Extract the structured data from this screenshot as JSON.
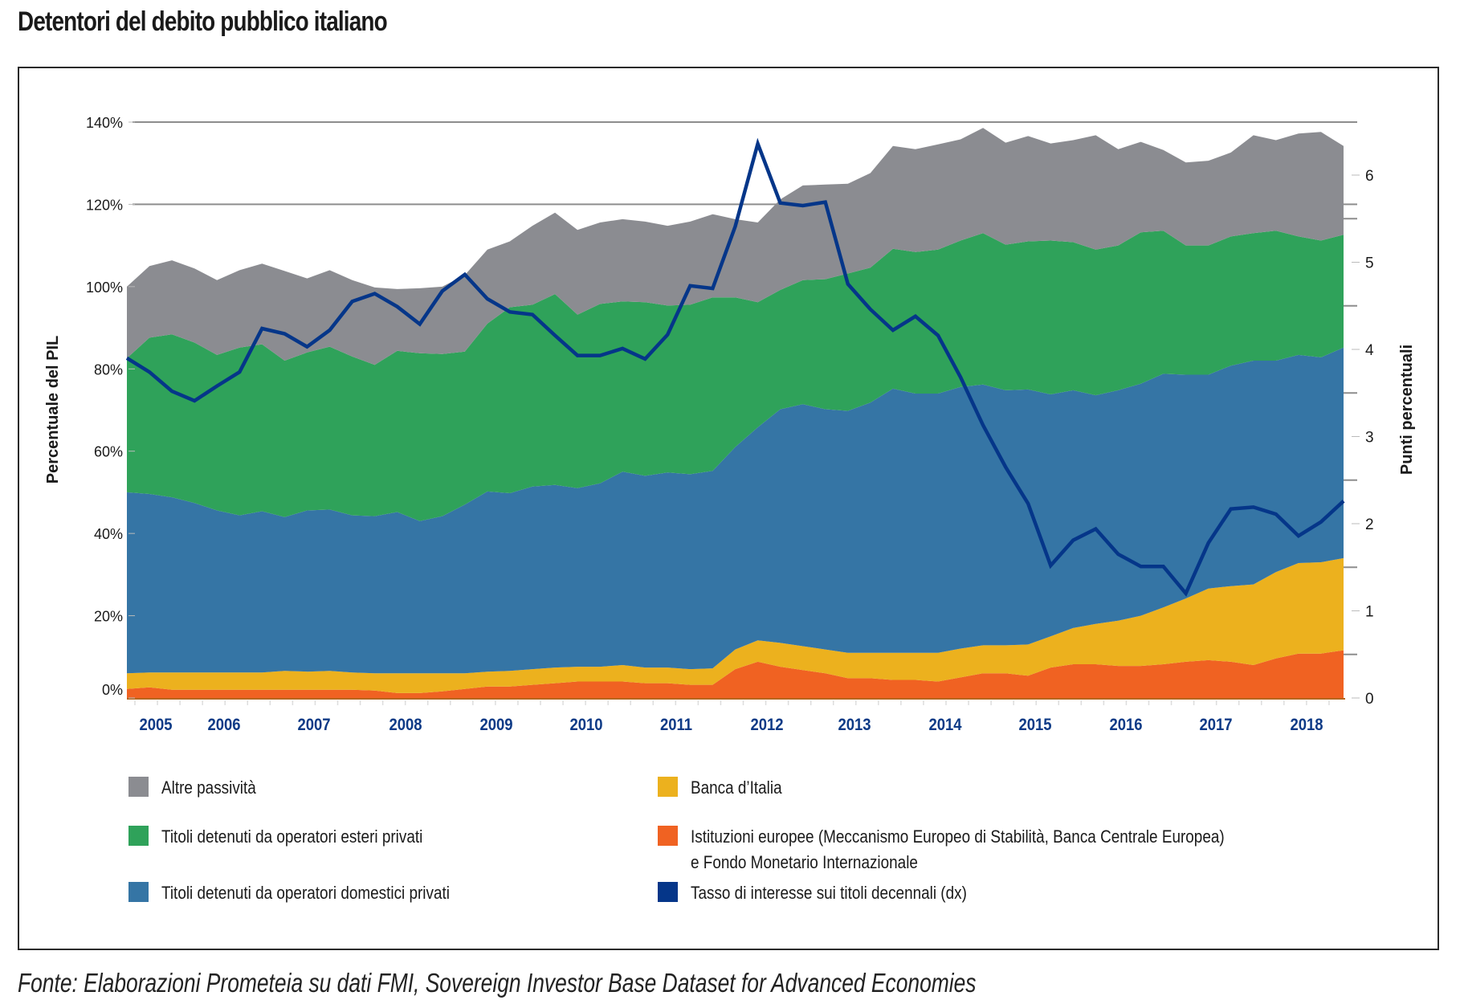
{
  "title": "Detentori del debito pubblico italiano",
  "footer": "Fonte: Elaborazioni Prometeia su dati FMI, Sovereign Investor Base Dataset for Advanced Economies",
  "chart_data": {
    "type": "area",
    "title": "Detentori del debito pubblico italiano",
    "ylabel": "Percentuale del PIL",
    "y2label": "Punti percentuali",
    "ylim": [
      0,
      140
    ],
    "y2lim": [
      0,
      6.4
    ],
    "yticks": [
      "0%",
      "20%",
      "40%",
      "60%",
      "80%",
      "100%",
      "120%",
      "140%"
    ],
    "y2ticks": [
      "0",
      "1",
      "2",
      "3",
      "4",
      "5",
      "6"
    ],
    "xtick_labels": [
      "2005",
      "2006",
      "2007",
      "2008",
      "2009",
      "2010",
      "2011",
      "2012",
      "2013",
      "2014",
      "2015",
      "2016",
      "2017",
      "2018"
    ],
    "x_start": "2005Q1",
    "frequency": "quarterly",
    "grid": "horizontal (120%, 140%)",
    "legend_position": "bottom",
    "stack_order": [
      "Istituzioni europee",
      "Banca d'Italia",
      "Domestici privati",
      "Esteri privati",
      "Altre passività"
    ],
    "series": [
      {
        "name": "Istituzioni europee (Meccanismo Europeo di Stabilità, Banca Centrale Europea)\ne Fondo Monetario Internazionale",
        "key": "eu",
        "color": "#f06222",
        "axis": "left",
        "values": [
          2.2,
          2.6,
          2.0,
          2.0,
          2.0,
          2.0,
          2.0,
          2.0,
          2.0,
          2.0,
          2.0,
          1.8,
          1.2,
          1.2,
          1.6,
          2.2,
          2.8,
          2.8,
          3.2,
          3.6,
          4.0,
          4.0,
          4.0,
          3.6,
          3.6,
          3.2,
          3.2,
          7.0,
          8.8,
          7.6,
          6.8,
          6.0,
          4.8,
          4.8,
          4.4,
          4.4,
          4.0,
          5.0,
          6.0,
          6.0,
          5.4,
          7.4,
          8.2,
          8.2,
          7.8,
          7.8,
          8.2,
          8.8,
          9.2,
          8.8,
          8.0,
          9.6,
          10.8,
          10.8,
          11.6
        ]
      },
      {
        "name": "Banca d'Italia",
        "key": "bdi",
        "color": "#ecb11e",
        "axis": "left",
        "values": [
          3.8,
          3.6,
          4.2,
          4.2,
          4.2,
          4.2,
          4.2,
          4.6,
          4.4,
          4.6,
          4.2,
          4.2,
          4.8,
          4.8,
          4.4,
          3.8,
          3.6,
          3.8,
          3.8,
          3.8,
          3.6,
          3.6,
          4.0,
          3.8,
          3.8,
          3.8,
          4.0,
          4.8,
          5.2,
          5.8,
          5.8,
          5.8,
          6.2,
          6.2,
          6.6,
          6.6,
          7.0,
          7.0,
          6.8,
          6.8,
          7.6,
          7.6,
          8.8,
          9.8,
          11.0,
          12.2,
          13.8,
          15.4,
          17.4,
          18.4,
          19.6,
          21.0,
          22.0,
          22.2,
          22.4
        ]
      },
      {
        "name": "Titoli detenuti da operatori domestici privati",
        "key": "dom",
        "color": "#3575a5",
        "axis": "left",
        "values": [
          44.0,
          43.4,
          42.6,
          41.2,
          39.4,
          38.2,
          39.2,
          37.4,
          39.2,
          39.2,
          38.2,
          38.2,
          39.2,
          37.0,
          38.2,
          41.0,
          43.8,
          43.2,
          44.4,
          44.4,
          43.4,
          44.6,
          47.0,
          46.6,
          47.4,
          47.4,
          48.0,
          49.2,
          51.8,
          56.8,
          58.8,
          58.4,
          58.8,
          60.8,
          64.2,
          63.0,
          63.0,
          63.6,
          63.4,
          62.0,
          62.0,
          58.8,
          57.8,
          55.6,
          56.0,
          56.4,
          56.8,
          54.4,
          52.0,
          53.6,
          54.4,
          51.4,
          50.6,
          49.8,
          51.2
        ]
      },
      {
        "name": "Titoli detenuti da operatori esteri privati",
        "key": "est",
        "color": "#2fa25a",
        "axis": "left",
        "values": [
          32.6,
          38.0,
          39.6,
          39.0,
          37.8,
          40.8,
          40.6,
          38.0,
          38.4,
          39.6,
          38.6,
          36.8,
          39.2,
          40.8,
          39.4,
          37.2,
          40.8,
          45.2,
          44.2,
          46.4,
          42.2,
          43.6,
          41.4,
          42.2,
          40.6,
          41.2,
          42.2,
          36.4,
          30.4,
          29.0,
          30.2,
          31.6,
          33.4,
          32.8,
          34.0,
          34.4,
          35.0,
          35.6,
          36.8,
          35.4,
          36.0,
          37.4,
          36.0,
          35.4,
          35.2,
          36.8,
          34.8,
          31.4,
          31.4,
          31.4,
          31.0,
          31.6,
          28.8,
          28.4,
          27.4
        ]
      },
      {
        "name": "Altre passività",
        "key": "alt",
        "color": "#8b8c91",
        "axis": "left",
        "values": [
          17.4,
          17.4,
          18.0,
          18.0,
          18.2,
          18.8,
          19.6,
          21.8,
          18.0,
          18.6,
          18.6,
          18.8,
          15.0,
          15.8,
          16.4,
          18.6,
          18.0,
          16.0,
          19.2,
          19.8,
          20.6,
          19.8,
          20.0,
          19.6,
          19.4,
          20.2,
          20.2,
          19.0,
          19.4,
          22.0,
          23.0,
          23.0,
          21.8,
          23.0,
          25.0,
          25.0,
          25.6,
          24.6,
          25.6,
          24.8,
          25.6,
          23.6,
          24.8,
          27.8,
          23.4,
          22.0,
          19.6,
          20.2,
          20.6,
          20.4,
          23.8,
          22.0,
          25.0,
          26.4,
          21.6
        ]
      },
      {
        "name": "Tasso di interesse sui titoli decennali (dx)",
        "key": "rate",
        "color": "#053689",
        "axis": "right",
        "type": "line",
        "values": [
          3.9,
          3.74,
          3.52,
          3.41,
          3.58,
          3.74,
          4.24,
          4.18,
          4.03,
          4.22,
          4.55,
          4.64,
          4.49,
          4.29,
          4.67,
          4.86,
          4.58,
          4.43,
          4.4,
          4.16,
          3.93,
          3.93,
          4.01,
          3.89,
          4.17,
          4.73,
          4.7,
          5.41,
          6.36,
          5.68,
          5.65,
          5.69,
          4.75,
          4.46,
          4.22,
          4.38,
          4.16,
          3.68,
          3.13,
          2.65,
          2.23,
          1.52,
          1.81,
          1.94,
          1.65,
          1.51,
          1.51,
          1.2,
          1.78,
          2.17,
          2.19,
          2.11,
          1.86,
          2.02,
          2.26
        ]
      }
    ]
  },
  "legend": [
    {
      "key": "alt",
      "label": "Altre passività",
      "color": "#8b8c91"
    },
    {
      "key": "est",
      "label": "Titoli detenuti da operatori esteri privati",
      "color": "#2fa25a"
    },
    {
      "key": "dom",
      "label": "Titoli detenuti da operatori domestici privati",
      "color": "#3575a5"
    },
    {
      "key": "bdi",
      "label": "Banca d’Italia",
      "color": "#ecb11e"
    },
    {
      "key": "eu",
      "label": "Istituzioni europee (Meccanismo Europeo di Stabilità, Banca Centrale Europea)\ne Fondo Monetario Internazionale",
      "color": "#f06222"
    },
    {
      "key": "rate",
      "label": "Tasso di interesse sui titoli decennali (dx)",
      "color": "#053689"
    }
  ]
}
